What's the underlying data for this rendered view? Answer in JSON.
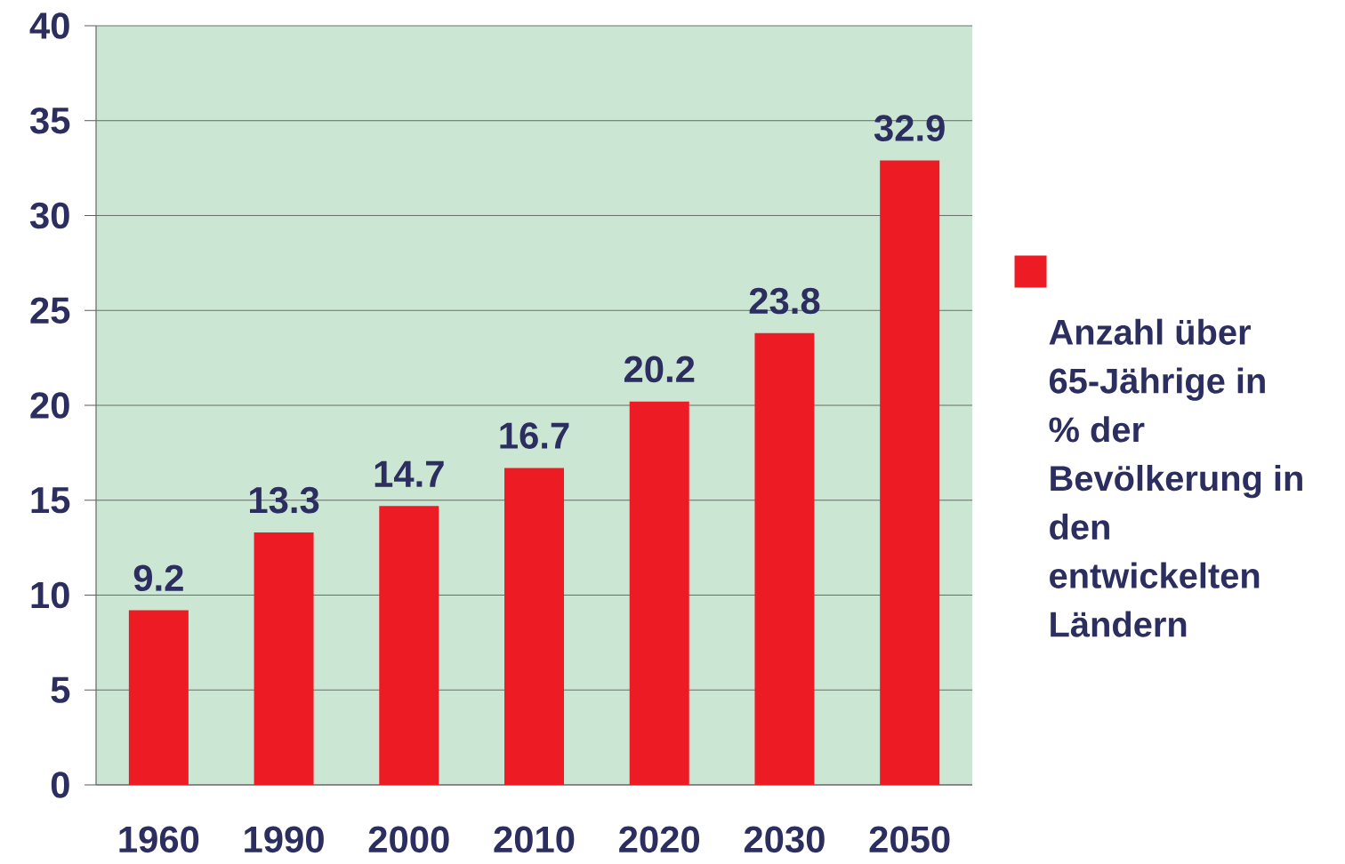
{
  "chart_data": {
    "type": "bar",
    "categories": [
      "1960",
      "1990",
      "2000",
      "2010",
      "2020",
      "2030",
      "2050"
    ],
    "series": [
      {
        "name": "Anzahl über 65-Jährige in % der Bevölkerung in den entwickelten Ländern",
        "color": "#ed1c24",
        "values": [
          9.2,
          13.3,
          14.7,
          16.7,
          20.2,
          23.8,
          32.9
        ]
      }
    ],
    "ylim": [
      0,
      40
    ],
    "yticks": [
      0,
      5,
      10,
      15,
      20,
      25,
      30,
      35,
      40
    ],
    "grid": "y",
    "legend": "right",
    "data_labels": true
  }
}
